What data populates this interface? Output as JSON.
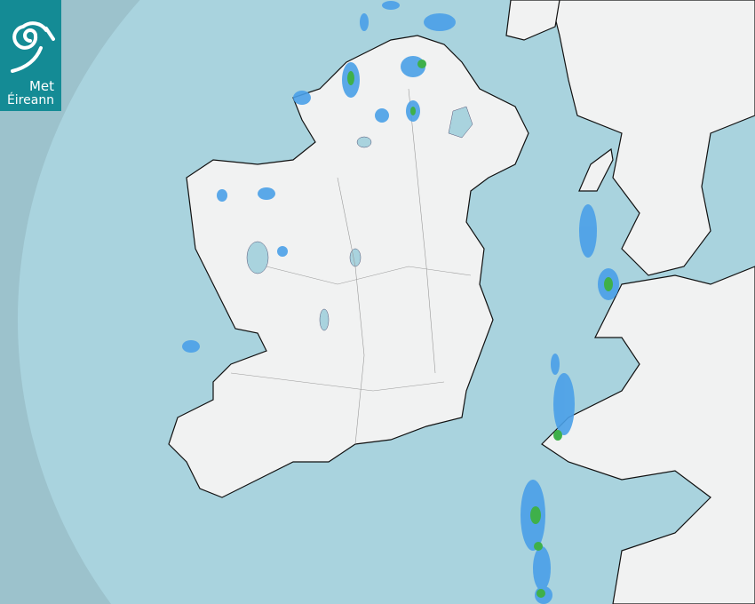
{
  "logo": {
    "line1": "Met",
    "line2": "Éireann",
    "icon": "spiral-wind-icon"
  },
  "colors": {
    "outside_coverage": "#9cc2cc",
    "sea": "#a9d3de",
    "land": "#f2f3f3",
    "brand_teal": "#148b95",
    "rain_light": "#4aa0e8",
    "rain_moderate": "#3fb04a"
  }
}
